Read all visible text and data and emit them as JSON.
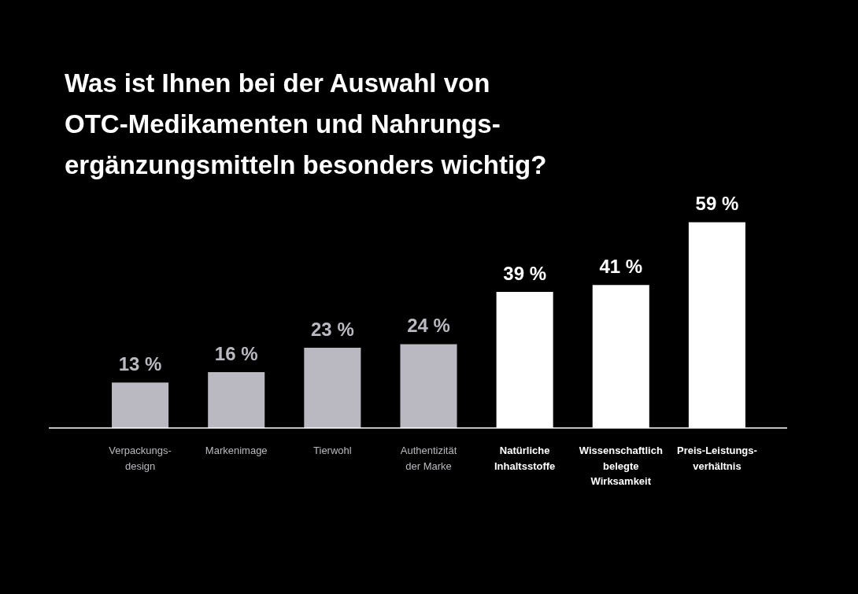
{
  "chart_data": {
    "type": "bar",
    "title": "Was ist Ihnen bei der Auswahl von\nOTC-Medikamenten und Nahrungs-\nergänzungsmitteln besonders wichtig?",
    "categories": [
      "Verpackungs-\ndesign",
      "Markenimage",
      "Tierwohl",
      "Authentizität\nder Marke",
      "Natürliche\nInhaltsstoffe",
      "Wissenschaftlich\nbelegte\nWirksamkeit",
      "Preis-Leistungs-\nverhältnis"
    ],
    "values": [
      13,
      16,
      23,
      24,
      39,
      41,
      59
    ],
    "colors": [
      "#bab9c1",
      "#bab9c1",
      "#bab9c1",
      "#bab9c1",
      "#ffffff",
      "#ffffff",
      "#ffffff"
    ],
    "value_labels": [
      "13 %",
      "16 %",
      "23 %",
      "24 %",
      "39 %",
      "41 %",
      "59 %"
    ],
    "legend": false
  }
}
